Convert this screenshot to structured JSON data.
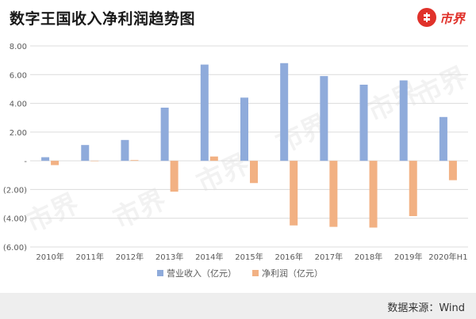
{
  "header": {
    "title": "数字王国收入净利润趋势图",
    "brand_name": "市界"
  },
  "footer": {
    "source": "数据来源：Wind"
  },
  "watermark": "市界",
  "colors": {
    "revenue": "#8fabdb",
    "profit": "#f2b183",
    "grid": "#dcdcdc",
    "axis_text": "#595959",
    "brand": "#e0322b"
  },
  "chart_data": {
    "type": "bar",
    "title": "",
    "xlabel": "",
    "ylabel": "",
    "categories": [
      "2010年",
      "2011年",
      "2012年",
      "2013年",
      "2014年",
      "2015年",
      "2016年",
      "2017年",
      "2018年",
      "2019年",
      "2020年H1"
    ],
    "series": [
      {
        "name": "营业收入（亿元）",
        "values": [
          0.25,
          1.1,
          1.45,
          3.7,
          6.7,
          4.4,
          6.8,
          5.9,
          5.3,
          5.6,
          3.05
        ]
      },
      {
        "name": "净利润（亿元）",
        "values": [
          -0.3,
          0.0,
          0.05,
          -2.15,
          0.3,
          -1.55,
          -4.5,
          -4.6,
          -4.65,
          -3.85,
          -1.35
        ]
      }
    ],
    "ylim": [
      -6.0,
      8.0
    ],
    "yticks": [
      8,
      6,
      4,
      2,
      0,
      -2,
      -4,
      -6
    ],
    "ytick_labels": [
      "8.00",
      "6.00",
      "4.00",
      "2.00",
      "-",
      "(2.00)",
      "(4.00)",
      "(6.00)"
    ],
    "grid": true,
    "legend_position": "bottom"
  }
}
